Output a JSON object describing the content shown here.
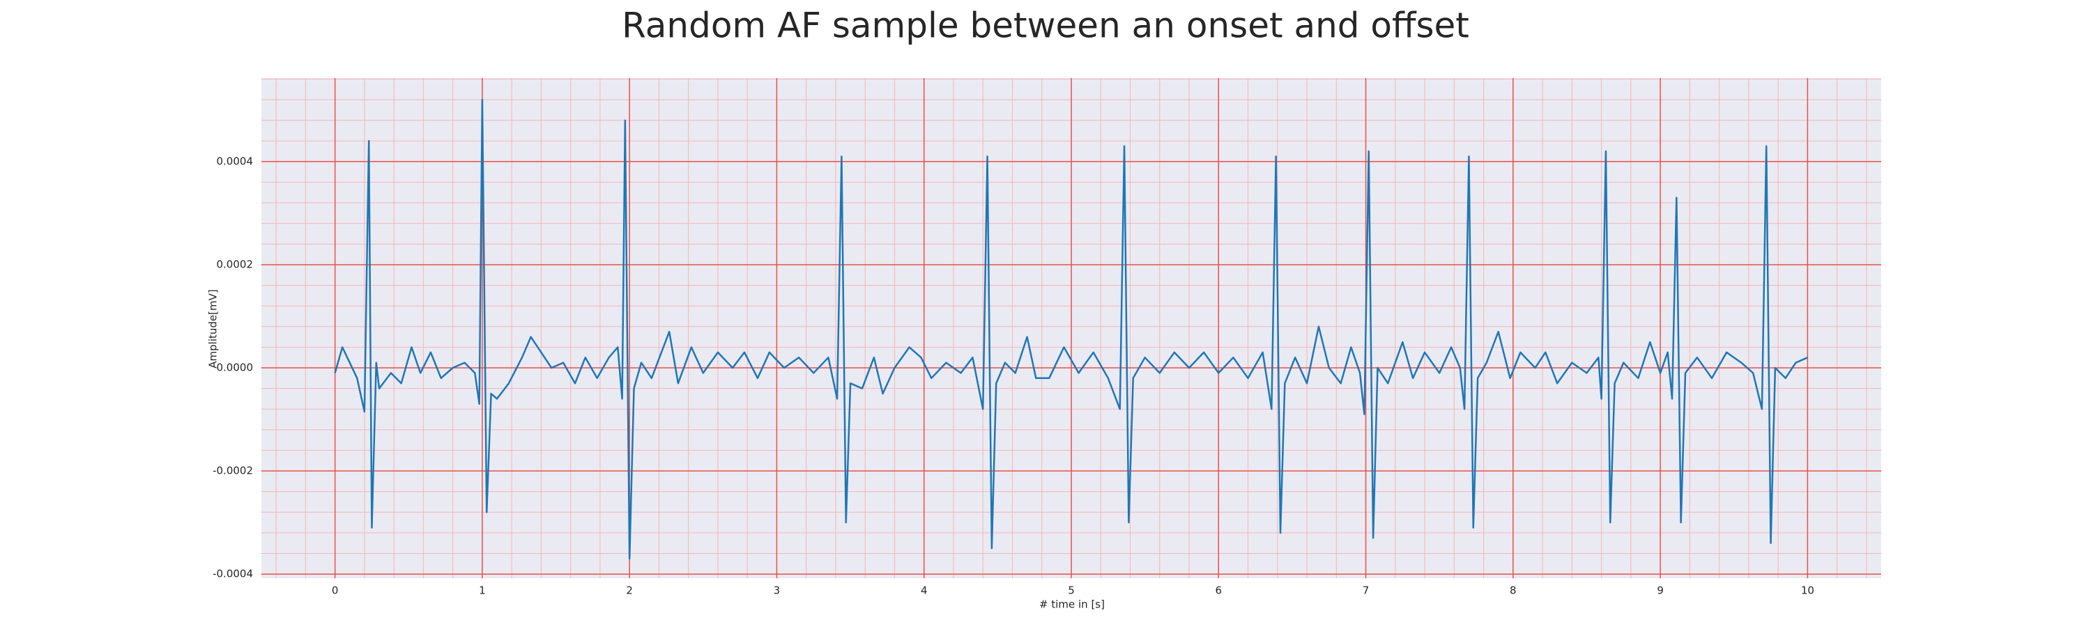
{
  "chart_data": {
    "type": "line",
    "title": "Random AF sample between an onset and offset",
    "xlabel": "# time in [s]",
    "ylabel": "Amplitude[mV]",
    "x": [
      0,
      0.05,
      0.1,
      0.15,
      0.2,
      0.23,
      0.25,
      0.28,
      0.3,
      0.38,
      0.45,
      0.52,
      0.58,
      0.65,
      0.72,
      0.8,
      0.88,
      0.95,
      0.98,
      1.0,
      1.03,
      1.06,
      1.1,
      1.18,
      1.27,
      1.33,
      1.4,
      1.47,
      1.55,
      1.63,
      1.7,
      1.78,
      1.86,
      1.92,
      1.95,
      1.97,
      2.0,
      2.03,
      2.08,
      2.15,
      2.27,
      2.33,
      2.42,
      2.5,
      2.6,
      2.7,
      2.78,
      2.87,
      2.95,
      3.05,
      3.15,
      3.25,
      3.35,
      3.41,
      3.44,
      3.47,
      3.5,
      3.58,
      3.66,
      3.72,
      3.8,
      3.9,
      3.98,
      4.05,
      4.15,
      4.25,
      4.33,
      4.4,
      4.43,
      4.46,
      4.49,
      4.55,
      4.62,
      4.7,
      4.76,
      4.85,
      4.95,
      5.05,
      5.15,
      5.25,
      5.33,
      5.36,
      5.39,
      5.42,
      5.5,
      5.6,
      5.7,
      5.8,
      5.9,
      6.0,
      6.1,
      6.2,
      6.3,
      6.36,
      6.39,
      6.42,
      6.45,
      6.52,
      6.6,
      6.68,
      6.75,
      6.83,
      6.9,
      6.96,
      6.99,
      7.02,
      7.05,
      7.08,
      7.15,
      7.25,
      7.32,
      7.4,
      7.5,
      7.58,
      7.64,
      7.67,
      7.7,
      7.73,
      7.76,
      7.82,
      7.9,
      7.98,
      8.05,
      8.15,
      8.22,
      8.3,
      8.4,
      8.5,
      8.58,
      8.6,
      8.63,
      8.66,
      8.69,
      8.75,
      8.85,
      8.93,
      9.0,
      9.05,
      9.08,
      9.11,
      9.14,
      9.17,
      9.25,
      9.35,
      9.45,
      9.55,
      9.63,
      9.69,
      9.72,
      9.75,
      9.78,
      9.85,
      9.92,
      10.0
    ],
    "series": [
      {
        "color": "#1f77b4",
        "values": [
          -1e-05,
          4e-05,
          1e-05,
          -2e-05,
          -8.5e-05,
          0.00044,
          -0.00031,
          1e-05,
          -4e-05,
          -1e-05,
          -3e-05,
          4e-05,
          -1e-05,
          3e-05,
          -2e-05,
          0,
          1e-05,
          -1e-05,
          -7e-05,
          0.00052,
          -0.00028,
          -5e-05,
          -6e-05,
          -3e-05,
          2e-05,
          6e-05,
          3e-05,
          0,
          1e-05,
          -3e-05,
          2e-05,
          -2e-05,
          2e-05,
          4e-05,
          -6e-05,
          0.00048,
          -0.00037,
          -4e-05,
          1e-05,
          -2e-05,
          7e-05,
          -3e-05,
          4e-05,
          -1e-05,
          3e-05,
          0,
          3e-05,
          -2e-05,
          3e-05,
          0,
          2e-05,
          -1e-05,
          2e-05,
          -6e-05,
          0.00041,
          -0.0003,
          -3e-05,
          -4e-05,
          2e-05,
          -5e-05,
          0,
          4e-05,
          2e-05,
          -2e-05,
          1e-05,
          -1e-05,
          2e-05,
          -8e-05,
          0.00041,
          -0.00035,
          -3e-05,
          1e-05,
          -1e-05,
          6e-05,
          -2e-05,
          -2e-05,
          4e-05,
          -1e-05,
          3e-05,
          -2e-05,
          -8e-05,
          0.00043,
          -0.0003,
          -2e-05,
          2e-05,
          -1e-05,
          3e-05,
          0,
          3e-05,
          -1e-05,
          2e-05,
          -2e-05,
          3e-05,
          -8e-05,
          0.00041,
          -0.00032,
          -3e-05,
          2e-05,
          -3e-05,
          8e-05,
          0,
          -3e-05,
          4e-05,
          -1e-05,
          -9e-05,
          0.00042,
          -0.00033,
          0,
          -3e-05,
          5e-05,
          -2e-05,
          3e-05,
          -1e-05,
          4e-05,
          0,
          -8e-05,
          0.00041,
          -0.00031,
          -2e-05,
          1e-05,
          7e-05,
          -2e-05,
          3e-05,
          0,
          3e-05,
          -3e-05,
          1e-05,
          -1e-05,
          2e-05,
          -6e-05,
          0.00042,
          -0.0003,
          -3e-05,
          1e-05,
          -2e-05,
          5e-05,
          -1e-05,
          3e-05,
          -6e-05,
          0.00033,
          -0.0003,
          -1e-05,
          2e-05,
          -2e-05,
          3e-05,
          1e-05,
          -1e-05,
          -8e-05,
          0.00043,
          -0.00034,
          0,
          -2e-05,
          1e-05,
          2e-05
        ]
      }
    ],
    "xlim": [
      -0.5,
      10.5
    ],
    "ylim": [
      -0.000408,
      0.000562
    ],
    "xticks": [
      0,
      1,
      2,
      3,
      4,
      5,
      6,
      7,
      8,
      9,
      10
    ],
    "yticks": [
      -0.0004,
      -0.0002,
      {
        "value": 0,
        "label": "0.0000"
      },
      0.0002,
      0.0004
    ],
    "grid": true,
    "minor_divisions": 5,
    "grid_color": "#e8514a",
    "minor_grid_color": "#f3b6b8",
    "background": "#eaeaf2"
  }
}
